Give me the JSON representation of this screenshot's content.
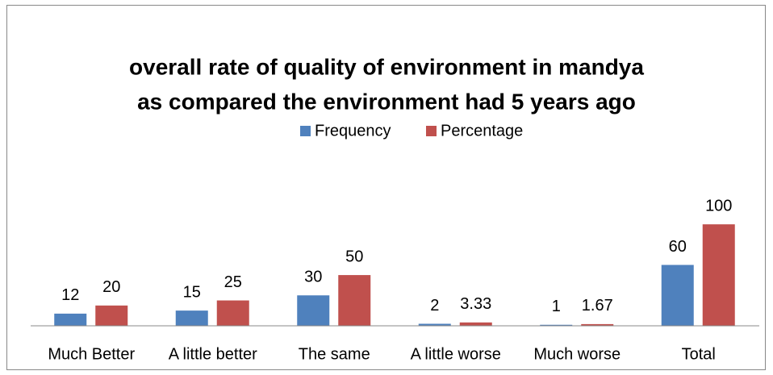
{
  "chart_data": {
    "type": "bar",
    "title": [
      "overall rate of quality of environment in mandya",
      "as compared the environment had 5 years ago"
    ],
    "categories": [
      "Much Better",
      "A little better",
      "The same",
      "A little worse",
      "Much worse",
      "Total"
    ],
    "series": [
      {
        "name": "Frequency",
        "color": "#4f81bd",
        "values": [
          12,
          15,
          30,
          2,
          1,
          60
        ]
      },
      {
        "name": "Percentage",
        "color": "#c0504d",
        "values": [
          20,
          25,
          50,
          3.33,
          1.67,
          100
        ]
      }
    ],
    "ylim": [
      0,
      120
    ],
    "legend": "top"
  }
}
